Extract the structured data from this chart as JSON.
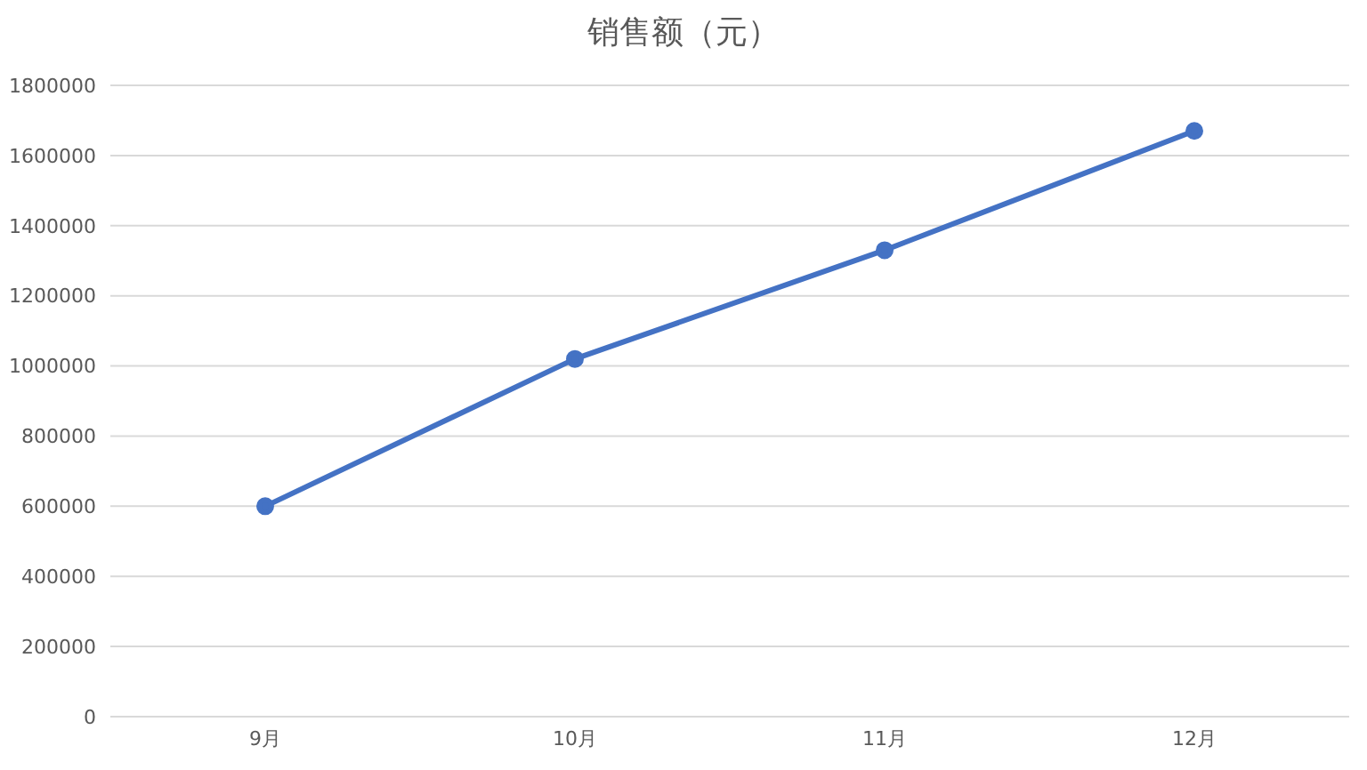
{
  "chart_data": {
    "type": "line",
    "title": "销售额（元）",
    "categories": [
      "9月",
      "10月",
      "11月",
      "12月"
    ],
    "series": [
      {
        "color": "#4472c4",
        "values": [
          600000,
          1020000,
          1330000,
          1670000
        ]
      }
    ],
    "ylim": [
      0,
      1800000
    ],
    "yticks": [
      0,
      200000,
      400000,
      600000,
      800000,
      1000000,
      1200000,
      1400000,
      1600000,
      1800000
    ],
    "grid": "y",
    "legend": false,
    "marker": "circle",
    "line_style": "solid"
  }
}
